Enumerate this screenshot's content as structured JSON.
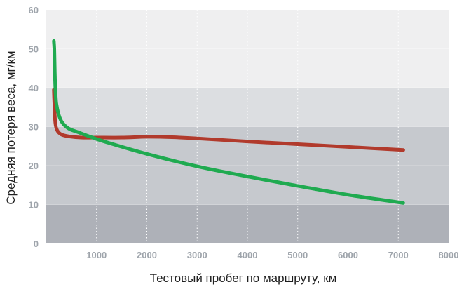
{
  "chart_data": {
    "type": "line",
    "title": "",
    "xlabel": "Тестовый пробег по маршруту, км",
    "ylabel": "Средняя потеря веса, мг/км",
    "xlim": [
      0,
      8000
    ],
    "ylim": [
      0,
      60
    ],
    "xticks": [
      1000,
      2000,
      3000,
      4000,
      5000,
      6000,
      7000,
      8000
    ],
    "yticks": [
      0,
      10,
      20,
      30,
      40,
      50,
      60
    ],
    "grid": "vertical dotted",
    "legend": "none",
    "background_bands": [
      {
        "from": 0,
        "to": 10,
        "color": "#aeb1b8"
      },
      {
        "from": 10,
        "to": 30,
        "color": "#c6c9ce"
      },
      {
        "from": 30,
        "to": 40,
        "color": "#dcdee1"
      },
      {
        "from": 40,
        "to": 60,
        "color": "#efeff0"
      }
    ],
    "series": [
      {
        "color": "#b13a2c",
        "x": [
          150,
          160,
          180,
          220,
          300,
          450,
          700,
          1000,
          1500,
          2000,
          2500,
          3000,
          4000,
          5000,
          6000,
          7100
        ],
        "y": [
          39.5,
          36,
          31,
          29,
          28,
          27.5,
          27.2,
          27.2,
          27.2,
          27.4,
          27.3,
          27,
          26.2,
          25.5,
          24.8,
          24
        ]
      },
      {
        "color": "#1faa50",
        "x": [
          150,
          160,
          170,
          180,
          200,
          250,
          320,
          450,
          650,
          900,
          1200,
          2000,
          3000,
          4000,
          5000,
          6000,
          7100
        ],
        "y": [
          52,
          50,
          44,
          40,
          36,
          33,
          31,
          29.5,
          28.5,
          27.3,
          26,
          23,
          19.8,
          17.2,
          14.8,
          12.5,
          10.4
        ]
      }
    ]
  }
}
